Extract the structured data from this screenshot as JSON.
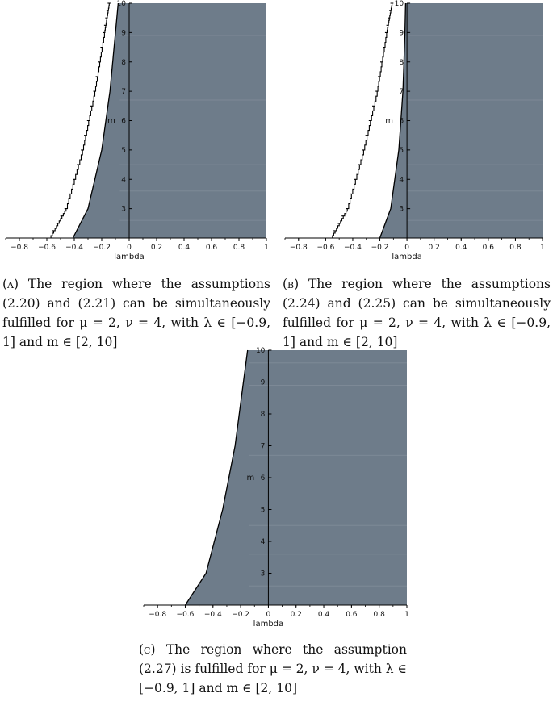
{
  "colors": {
    "region": "#6e7c8a",
    "band": "#7d8996",
    "axis": "#000000",
    "curve": "#000000"
  },
  "captions": {
    "a": {
      "tag": "(a)",
      "text": " The region where the assumptions (2.20) and (2.21) can be simultaneously fulfilled for μ = 2, ν = 4, with λ ∈ [−0.9, 1] and m ∈ [2, 10]"
    },
    "b": {
      "tag": "(b)",
      "text": " The region where the assumptions (2.24) and (2.25) can be simultaneously fulfilled for μ = 2, ν = 4, with λ ∈ [−0.9, 1] and m ∈ [2, 10]"
    },
    "c": {
      "tag": "(c)",
      "text": " The region where the assumption (2.27) is fulfilled for μ = 2, ν = 4, with λ ∈ [−0.9, 1] and m ∈ [2, 10]"
    }
  },
  "chart_data": [
    {
      "id": "a",
      "type": "area",
      "xlabel": "lambda",
      "ylabel": "m",
      "xlim": [
        -0.9,
        1
      ],
      "ylim": [
        2,
        10
      ],
      "xticks": [
        "-0.8",
        "-0.6",
        "-0.4",
        "-0.2",
        "0",
        "0.2",
        "0.4",
        "0.6",
        "0.8",
        "1"
      ],
      "yticks": [
        "3",
        "4",
        "5",
        "6",
        "7",
        "8",
        "9",
        "10"
      ],
      "region_boundary": {
        "x": [
          -0.41,
          -0.3,
          -0.2,
          -0.14,
          -0.1,
          -0.08
        ],
        "y": [
          2,
          3,
          5,
          7,
          9,
          10
        ]
      },
      "step_boundary": {
        "x": [
          -0.58,
          -0.46,
          -0.34,
          -0.25,
          -0.18,
          -0.145,
          -0.13
        ],
        "y": [
          2,
          3,
          5,
          7,
          9,
          10,
          10
        ]
      }
    },
    {
      "id": "b",
      "type": "area",
      "xlabel": "lambda",
      "ylabel": "m",
      "xlim": [
        -0.9,
        1
      ],
      "ylim": [
        2,
        10
      ],
      "xticks": [
        "-0.8",
        "-0.6",
        "-0.4",
        "-0.2",
        "0",
        "0.2",
        "0.4",
        "0.6",
        "0.8",
        "1"
      ],
      "yticks": [
        "3",
        "4",
        "5",
        "6",
        "7",
        "8",
        "9",
        "10"
      ],
      "region_boundary": {
        "x": [
          -0.2,
          -0.12,
          -0.06,
          -0.03,
          -0.015,
          -0.01
        ],
        "y": [
          2,
          3,
          5,
          7,
          9,
          10
        ]
      },
      "step_boundary": {
        "x": [
          -0.56,
          -0.44,
          -0.32,
          -0.22,
          -0.15,
          -0.11,
          -0.1
        ],
        "y": [
          2,
          3,
          5,
          7,
          9,
          10,
          10
        ]
      }
    },
    {
      "id": "c",
      "type": "area",
      "xlabel": "lambda",
      "ylabel": "m",
      "xlim": [
        -0.9,
        1
      ],
      "ylim": [
        2,
        10
      ],
      "xticks": [
        "-0.8",
        "-0.6",
        "-0.4",
        "-0.2",
        "0",
        "0.2",
        "0.4",
        "0.6",
        "0.8",
        "1"
      ],
      "yticks": [
        "3",
        "4",
        "5",
        "6",
        "7",
        "8",
        "9",
        "10"
      ],
      "region_boundary": {
        "x": [
          -0.6,
          -0.45,
          -0.33,
          -0.24,
          -0.18,
          -0.15
        ],
        "y": [
          2,
          3,
          5,
          7,
          9,
          10
        ]
      },
      "step_boundary": null
    }
  ]
}
